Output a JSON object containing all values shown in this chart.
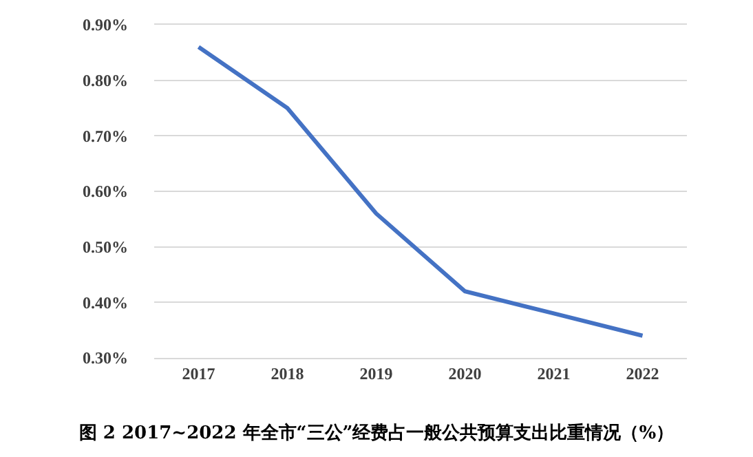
{
  "chart_data": {
    "type": "line",
    "title": "图 2 2017~2022 年全市“三公”经费占一般公共预算支出比重情况（%）",
    "categories": [
      "2017",
      "2018",
      "2019",
      "2020",
      "2021",
      "2022"
    ],
    "series": [
      {
        "color": "#4472c4",
        "values": [
          0.86,
          0.75,
          0.56,
          0.42,
          0.38,
          0.34
        ]
      }
    ],
    "ylim": [
      0.3,
      0.9
    ],
    "yticks": [
      {
        "value": 0.3,
        "label": "0.30%"
      },
      {
        "value": 0.4,
        "label": "0.40%"
      },
      {
        "value": 0.5,
        "label": "0.50%"
      },
      {
        "value": 0.6,
        "label": "0.60%"
      },
      {
        "value": 0.7,
        "label": "0.70%"
      },
      {
        "value": 0.8,
        "label": "0.80%"
      },
      {
        "value": 0.9,
        "label": "0.90%"
      }
    ],
    "grid": "y",
    "marker": "none",
    "line_style": "solid"
  }
}
